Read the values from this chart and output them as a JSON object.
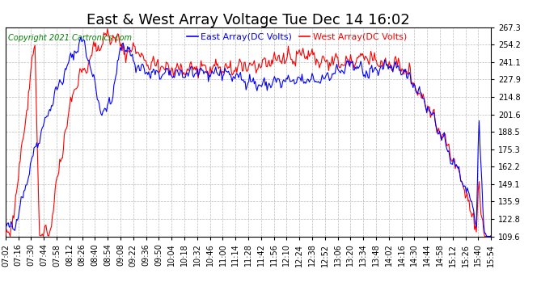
{
  "title": "East & West Array Voltage Tue Dec 14 16:02",
  "copyright": "Copyright 2021 Cartronics.com",
  "legend_east": "East Array(DC Volts)",
  "legend_west": "West Array(DC Volts)",
  "east_color": "blue",
  "west_color": "red",
  "background_color": "white",
  "grid_color": "#bbbbbb",
  "ylim_min": 109.6,
  "ylim_max": 267.3,
  "yticks": [
    109.6,
    122.8,
    135.9,
    149.1,
    162.2,
    175.3,
    188.5,
    201.6,
    214.8,
    227.9,
    241.1,
    254.2,
    267.3
  ],
  "xtick_labels": [
    "07:02",
    "07:16",
    "07:30",
    "07:44",
    "07:58",
    "08:12",
    "08:26",
    "08:40",
    "08:54",
    "09:08",
    "09:22",
    "09:36",
    "09:50",
    "10:04",
    "10:18",
    "10:32",
    "10:46",
    "11:00",
    "11:14",
    "11:28",
    "11:42",
    "11:56",
    "12:10",
    "12:24",
    "12:38",
    "12:52",
    "13:06",
    "13:20",
    "13:34",
    "13:48",
    "14:02",
    "14:16",
    "14:30",
    "14:44",
    "14:58",
    "15:12",
    "15:26",
    "15:40",
    "15:54"
  ],
  "title_fontsize": 13,
  "label_fontsize": 7,
  "copyright_fontsize": 7,
  "legend_fontsize": 8,
  "linewidth": 0.8
}
